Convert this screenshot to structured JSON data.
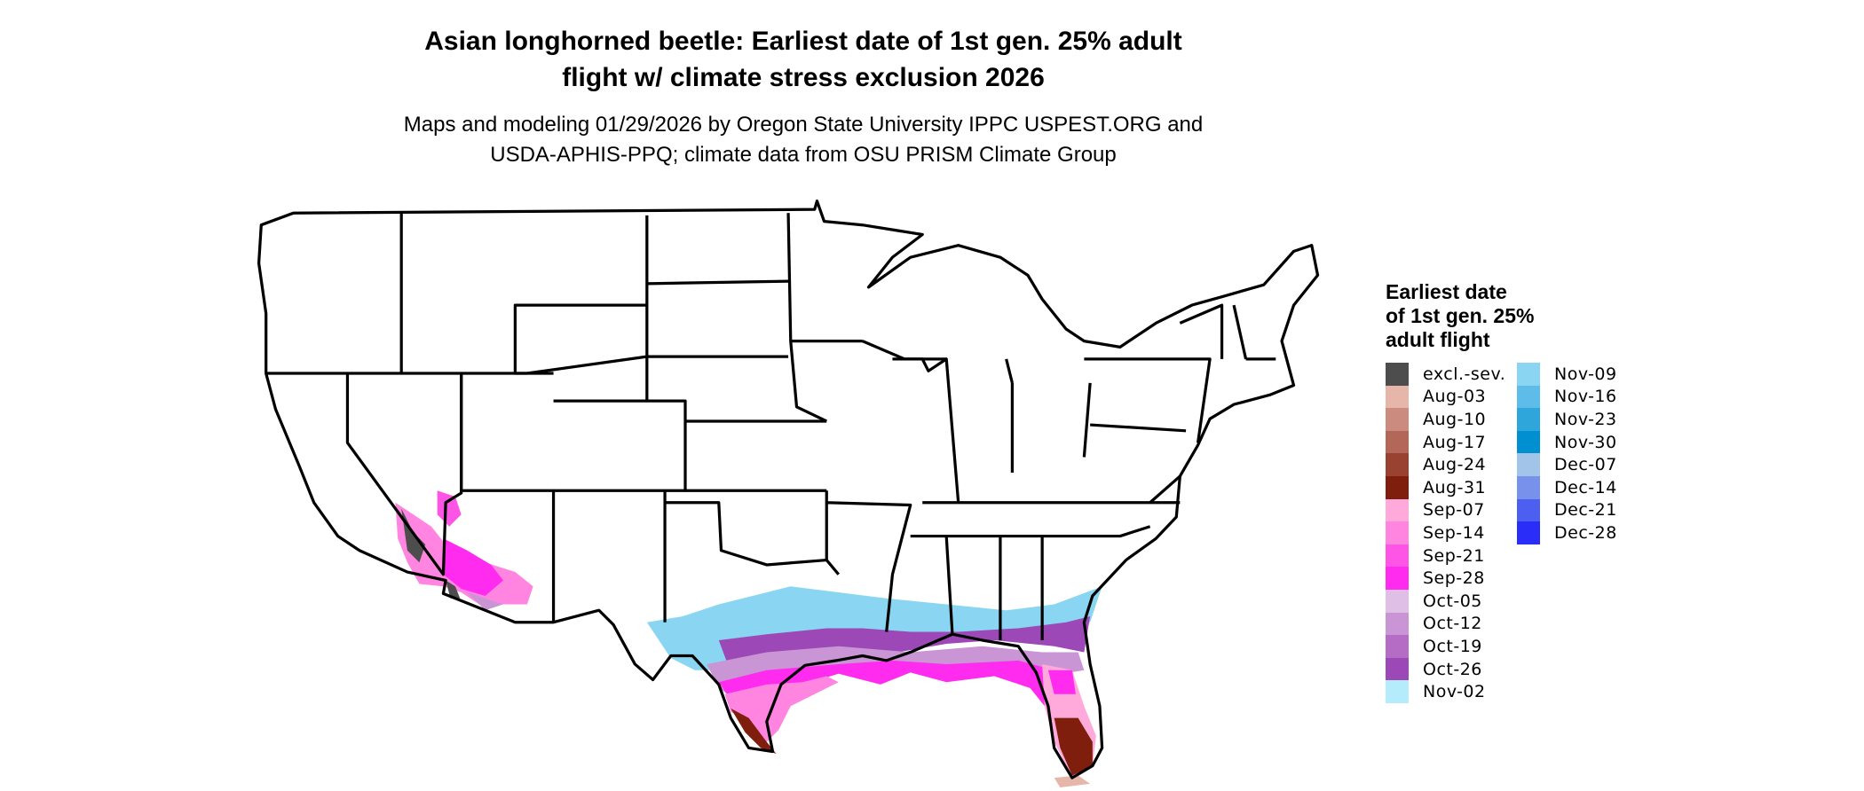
{
  "title": [
    "Asian longhorned beetle: Earliest date of 1st gen. 25% adult",
    "flight w/ climate stress exclusion 2026"
  ],
  "subtitle": [
    "Maps and modeling 01/29/2026 by Oregon State University IPPC USPEST.ORG and",
    "USDA-APHIS-PPQ; climate data from OSU PRISM Climate Group"
  ],
  "legend": {
    "title": [
      "Earliest date",
      "of 1st gen. 25%",
      "adult flight"
    ],
    "items": [
      {
        "label": "excl.-sev.",
        "color": "#4d4d4d"
      },
      {
        "label": "Aug-03",
        "color": "#e6b6ab"
      },
      {
        "label": "Aug-10",
        "color": "#cb8c7f"
      },
      {
        "label": "Aug-17",
        "color": "#b26758"
      },
      {
        "label": "Aug-24",
        "color": "#9a4232"
      },
      {
        "label": "Aug-31",
        "color": "#801e0d"
      },
      {
        "label": "Sep-07",
        "color": "#ffaadb"
      },
      {
        "label": "Sep-14",
        "color": "#ff85e1"
      },
      {
        "label": "Sep-21",
        "color": "#ff55e6"
      },
      {
        "label": "Sep-28",
        "color": "#ff2bee"
      },
      {
        "label": "Oct-05",
        "color": "#e0bfe6"
      },
      {
        "label": "Oct-12",
        "color": "#c995d5"
      },
      {
        "label": "Oct-19",
        "color": "#b46cc4"
      },
      {
        "label": "Oct-26",
        "color": "#9c48b6"
      },
      {
        "label": "Nov-02",
        "color": "#b4ecfc"
      },
      {
        "label": "Nov-09",
        "color": "#8ad6f2"
      },
      {
        "label": "Nov-16",
        "color": "#5dbde8"
      },
      {
        "label": "Nov-23",
        "color": "#2ea6dc"
      },
      {
        "label": "Nov-30",
        "color": "#0090d2"
      },
      {
        "label": "Dec-07",
        "color": "#a2c4e8"
      },
      {
        "label": "Dec-14",
        "color": "#7891ea"
      },
      {
        "label": "Dec-21",
        "color": "#4c5ff0"
      },
      {
        "label": "Dec-28",
        "color": "#2a2cf8"
      }
    ]
  }
}
